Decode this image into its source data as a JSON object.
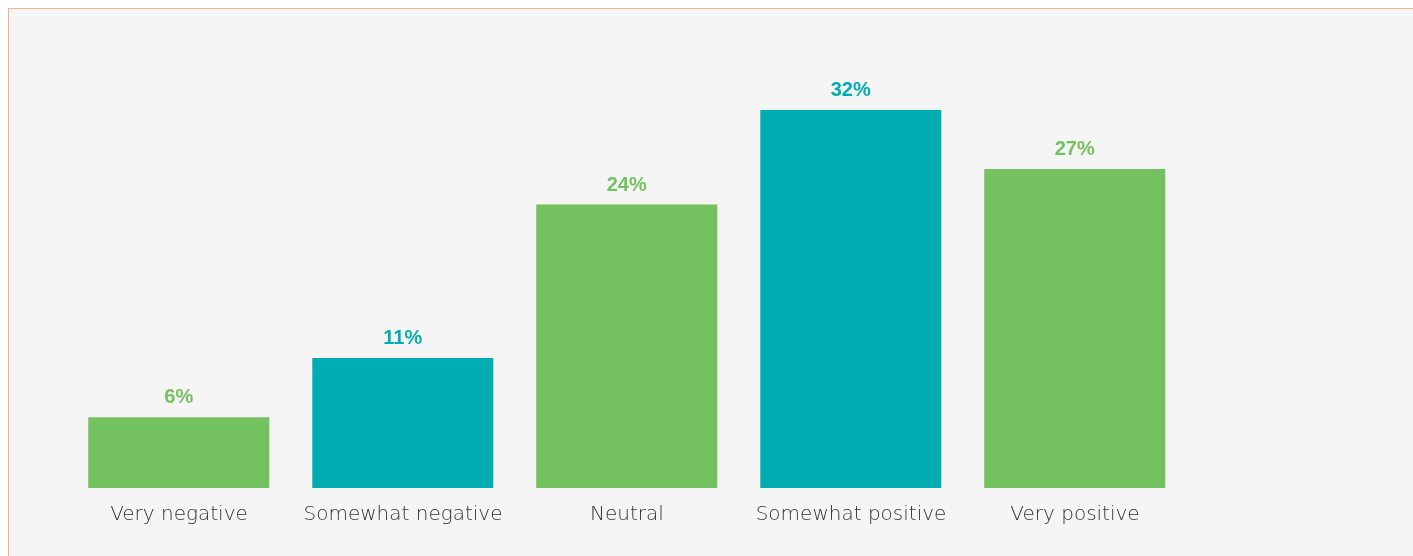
{
  "chart_data": {
    "type": "bar",
    "categories": [
      "Very negative",
      "Somewhat negative",
      "Neutral",
      "Somewhat positive",
      "Very positive"
    ],
    "values": [
      6,
      11,
      24,
      32,
      27
    ],
    "value_labels": [
      "6%",
      "11%",
      "24%",
      "32%",
      "27%"
    ],
    "colors": [
      "#74c15f",
      "#00adb3",
      "#74c15f",
      "#00adb3",
      "#74c15f"
    ],
    "grid": false,
    "tick_labels": "x"
  }
}
